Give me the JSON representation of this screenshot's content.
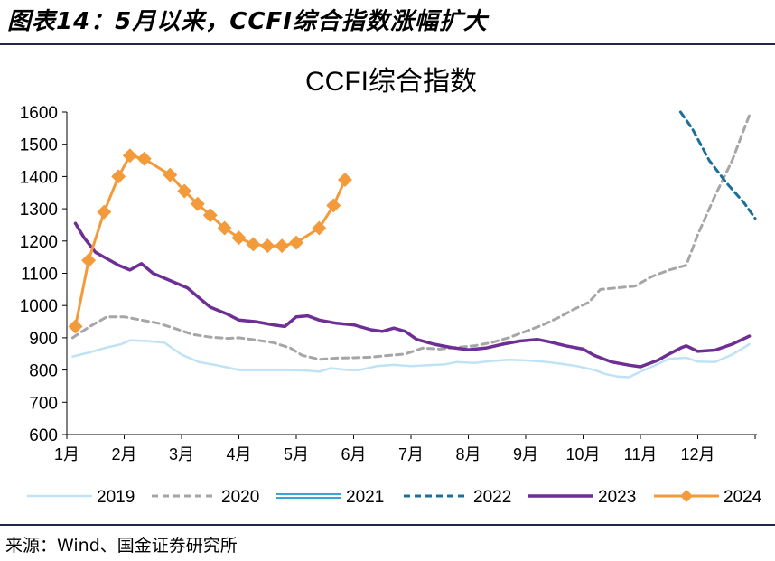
{
  "figure": {
    "title": "图表14：5月以来，CCFI综合指数涨幅扩大",
    "source": "来源：Wind、国金证券研究所"
  },
  "colors": {
    "2019": "#bfe3f4",
    "2020": "#a6a6a6",
    "2021": "#3aa6d6",
    "2022": "#1b6f99",
    "2023": "#6d2f93",
    "2024": "#f39a3b",
    "rule": "#1f2a44"
  },
  "chart_data": {
    "type": "line",
    "title": "CCFI综合指数",
    "xlabel": "",
    "ylabel": "",
    "ylim": [
      600,
      1600
    ],
    "yticks": [
      600,
      700,
      800,
      900,
      1000,
      1100,
      1200,
      1300,
      1400,
      1500,
      1600
    ],
    "xlim": [
      1,
      13
    ],
    "xtick_labels": [
      "1月",
      "2月",
      "3月",
      "4月",
      "5月",
      "6月",
      "7月",
      "8月",
      "9月",
      "10月",
      "11月",
      "12月"
    ],
    "grid": false,
    "legend_position": "bottom",
    "series": [
      {
        "name": "2019",
        "style": "solid",
        "marker": "none",
        "x": [
          1.1,
          1.4,
          1.7,
          1.95,
          2.1,
          2.4,
          2.7,
          3.0,
          3.3,
          3.6,
          3.8,
          4.0,
          4.3,
          4.6,
          4.9,
          5.2,
          5.4,
          5.6,
          5.9,
          6.1,
          6.4,
          6.7,
          7.0,
          7.3,
          7.6,
          7.8,
          8.1,
          8.4,
          8.7,
          9.0,
          9.3,
          9.6,
          9.9,
          10.2,
          10.4,
          10.6,
          10.8,
          11.0,
          11.2,
          11.5,
          11.8,
          12.0,
          12.3,
          12.6,
          12.9
        ],
        "y": [
          842,
          855,
          870,
          880,
          892,
          890,
          885,
          848,
          825,
          815,
          808,
          800,
          800,
          800,
          800,
          798,
          795,
          806,
          800,
          800,
          812,
          816,
          812,
          815,
          818,
          825,
          822,
          828,
          832,
          830,
          826,
          820,
          812,
          800,
          787,
          780,
          778,
          795,
          810,
          835,
          838,
          826,
          825,
          848,
          880
        ]
      },
      {
        "name": "2020",
        "style": "dashed",
        "marker": "none",
        "x": [
          1.1,
          1.4,
          1.7,
          2.0,
          2.3,
          2.6,
          2.9,
          3.2,
          3.5,
          3.8,
          4.0,
          4.3,
          4.6,
          4.9,
          5.1,
          5.4,
          5.7,
          6.0,
          6.3,
          6.6,
          6.9,
          7.2,
          7.5,
          7.8,
          8.1,
          8.4,
          8.7,
          9.0,
          9.3,
          9.6,
          9.8,
          10.1,
          10.3,
          10.6,
          10.9,
          11.2,
          11.5,
          11.8,
          12.0,
          12.3,
          12.6,
          12.9
        ],
        "y": [
          900,
          935,
          965,
          965,
          955,
          945,
          928,
          910,
          902,
          898,
          900,
          893,
          885,
          868,
          846,
          833,
          837,
          838,
          840,
          845,
          850,
          868,
          865,
          870,
          875,
          885,
          900,
          920,
          940,
          965,
          985,
          1010,
          1050,
          1055,
          1060,
          1090,
          1110,
          1125,
          1220,
          1340,
          1450,
          1590
        ]
      },
      {
        "name": "2021",
        "style": "double",
        "marker": "none",
        "x": [],
        "y": []
      },
      {
        "name": "2022",
        "style": "dashed",
        "marker": "none",
        "x": [
          11.7,
          11.9,
          12.2,
          12.5,
          12.8,
          13.0
        ],
        "y": [
          1600,
          1550,
          1450,
          1380,
          1320,
          1270
        ]
      },
      {
        "name": "2023",
        "style": "solid",
        "marker": "none",
        "x": [
          1.15,
          1.3,
          1.5,
          1.7,
          1.9,
          2.1,
          2.3,
          2.5,
          2.7,
          2.9,
          3.1,
          3.3,
          3.5,
          3.8,
          4.0,
          4.3,
          4.6,
          4.8,
          5.0,
          5.2,
          5.4,
          5.7,
          6.0,
          6.3,
          6.5,
          6.7,
          6.9,
          7.1,
          7.4,
          7.7,
          8.0,
          8.3,
          8.6,
          8.9,
          9.2,
          9.4,
          9.7,
          10.0,
          10.2,
          10.5,
          10.8,
          11.0,
          11.3,
          11.5,
          11.7,
          11.8,
          12.0,
          12.3,
          12.6,
          12.9
        ],
        "y": [
          1255,
          1210,
          1165,
          1145,
          1125,
          1110,
          1130,
          1100,
          1085,
          1070,
          1055,
          1025,
          995,
          973,
          955,
          950,
          940,
          935,
          965,
          968,
          955,
          945,
          940,
          925,
          920,
          930,
          920,
          895,
          880,
          870,
          863,
          868,
          880,
          890,
          895,
          888,
          875,
          865,
          845,
          825,
          815,
          810,
          830,
          850,
          868,
          875,
          858,
          862,
          880,
          905
        ]
      },
      {
        "name": "2024",
        "style": "solid",
        "marker": "diamond",
        "x": [
          1.15,
          1.38,
          1.65,
          1.9,
          2.1,
          2.35,
          2.8,
          3.05,
          3.28,
          3.5,
          3.75,
          4.0,
          4.25,
          4.5,
          4.75,
          5.0,
          5.4,
          5.65,
          5.85
        ],
        "y": [
          935,
          1140,
          1290,
          1400,
          1465,
          1455,
          1405,
          1355,
          1315,
          1280,
          1240,
          1210,
          1190,
          1185,
          1185,
          1195,
          1240,
          1310,
          1390
        ]
      }
    ]
  }
}
